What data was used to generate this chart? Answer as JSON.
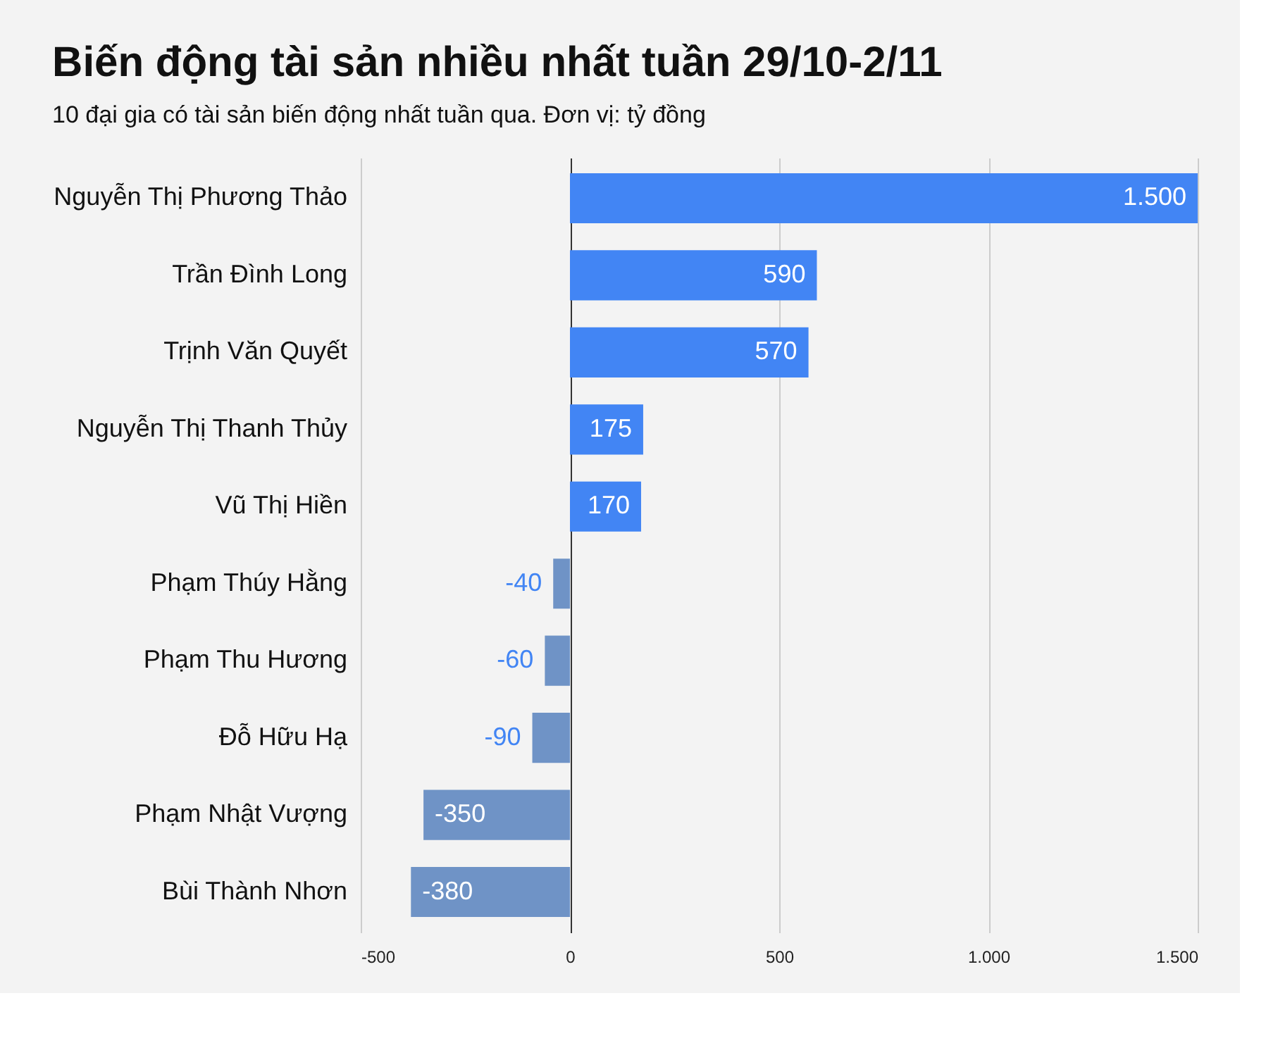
{
  "chart_data": {
    "type": "bar",
    "orientation": "horizontal",
    "title": "Biến động tài sản nhiều nhất tuần 29/10-2/11",
    "subtitle": "10 đại gia có tài sản biến động nhất tuần qua. Đơn vị: tỷ đồng",
    "categories": [
      "Nguyễn Thị Phương Thảo",
      "Trần Đình Long",
      "Trịnh Văn Quyết",
      "Nguyễn Thị Thanh Thủy",
      "Vũ Thị Hiền",
      "Phạm Thúy Hằng",
      "Phạm Thu Hương",
      "Đỗ Hữu Hạ",
      "Phạm Nhật Vượng",
      "Bùi Thành Nhơn"
    ],
    "values": [
      1500,
      590,
      570,
      175,
      170,
      -40,
      -60,
      -90,
      -350,
      -380
    ],
    "value_labels": [
      "1.500",
      "590",
      "570",
      "175",
      "170",
      "-40",
      "-60",
      "-90",
      "-350",
      "-380"
    ],
    "colors": [
      "#4285f4",
      "#4285f4",
      "#4285f4",
      "#4285f4",
      "#4285f4",
      "#6f93c6",
      "#6f93c6",
      "#6f93c6",
      "#6f93c6",
      "#6f93c6"
    ],
    "xlim": [
      -500,
      1500
    ],
    "xticks": [
      -500,
      0,
      500,
      {
        "value": 1000,
        "label": "1.000"
      },
      {
        "value": 1500,
        "label": "1.500"
      }
    ],
    "grid": "x"
  }
}
